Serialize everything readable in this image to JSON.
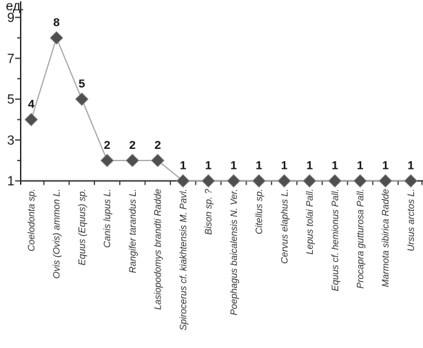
{
  "chart_data": {
    "type": "line",
    "title": "",
    "y_axis_unit_label": "ед.",
    "categories": [
      "Coelodonta sp.",
      "Ovis (Ovis) ammon L.",
      "Equus (Equus) sp.",
      "Canis lupus L.",
      "Rangifer tarandus L.",
      "Lasiopodomys brandti Radde",
      "Spirocerus cf. kiakhtensis M. Pavl.",
      "Bison sp. ?",
      "Poephagus baicalensis N. Ver.",
      "Citellus sp.",
      "Cervus elaphus L.",
      "Lepus tolai Pall.",
      "Equus cf. hemionus Pall.",
      "Procapra gutturosa Pall.",
      "Marmota sibirica Radde",
      "Ursus arctos L."
    ],
    "values": [
      4,
      8,
      5,
      2,
      2,
      2,
      1,
      1,
      1,
      1,
      1,
      1,
      1,
      1,
      1,
      1
    ],
    "data_labels": [
      "4",
      "8",
      "5",
      "2",
      "2",
      "2",
      "1",
      "1",
      "1",
      "1",
      "1",
      "1",
      "1",
      "1",
      "1",
      "1"
    ],
    "ylim": [
      1,
      9
    ],
    "y_major_ticks": [
      1,
      3,
      5,
      7,
      9
    ],
    "y_minor_ticks": [
      2,
      4,
      6,
      8
    ],
    "grid": false,
    "legend": "none",
    "marker": "diamond",
    "colors": {
      "marker": "#4f4f4f",
      "marker_edge": "#7d7d7d",
      "line": "#a0a0a0",
      "axis": "#2e2e2e",
      "tick_label": "#1c1c1c",
      "data_label": "#141414",
      "category_label": "#333333",
      "background": "#ffffff"
    }
  }
}
